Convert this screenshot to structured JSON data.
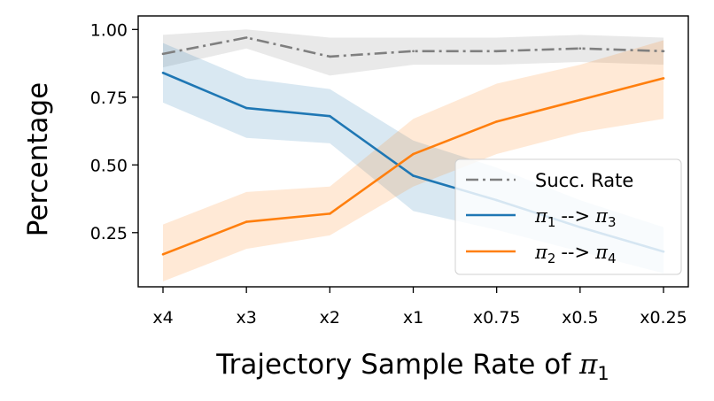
{
  "chart_data": {
    "type": "line",
    "categories": [
      "x4",
      "x3",
      "x2",
      "x1",
      "x0.75",
      "x0.5",
      "x0.25"
    ],
    "xlabel": {
      "text": "Trajectory Sample Rate of ",
      "sym": "π",
      "sub": "1"
    },
    "ylabel": "Percentage",
    "ylim": [
      0.05,
      1.05
    ],
    "yticks": [
      0.25,
      0.5,
      0.75,
      1.0
    ],
    "ytick_labels": [
      "0.25",
      "0.50",
      "0.75",
      "1.00"
    ],
    "grid": false,
    "legend_position": "lower-right",
    "series": [
      {
        "name": "Succ. Rate",
        "color": "#7f7f7f",
        "style": "dashdot",
        "values": [
          0.91,
          0.97,
          0.9,
          0.92,
          0.92,
          0.93,
          0.92
        ],
        "lower": [
          0.86,
          0.93,
          0.83,
          0.87,
          0.87,
          0.88,
          0.87
        ],
        "upper": [
          0.98,
          1.0,
          0.97,
          0.97,
          0.97,
          0.98,
          0.97
        ]
      },
      {
        "name": "-->",
        "sym_a": "π",
        "sub_a": "1",
        "sym_b": "π",
        "sub_b": "3",
        "color": "#1f77b4",
        "style": "solid",
        "values": [
          0.84,
          0.71,
          0.68,
          0.46,
          0.37,
          0.27,
          0.18
        ],
        "lower": [
          0.73,
          0.6,
          0.58,
          0.33,
          0.26,
          0.18,
          0.1
        ],
        "upper": [
          0.95,
          0.82,
          0.78,
          0.59,
          0.49,
          0.37,
          0.27
        ]
      },
      {
        "name": "-->",
        "sym_a": "π",
        "sub_a": "2",
        "sym_b": "π",
        "sub_b": "4",
        "color": "#ff7f0e",
        "style": "solid",
        "values": [
          0.17,
          0.29,
          0.32,
          0.54,
          0.66,
          0.74,
          0.82
        ],
        "lower": [
          0.07,
          0.19,
          0.24,
          0.42,
          0.54,
          0.62,
          0.67
        ],
        "upper": [
          0.28,
          0.4,
          0.42,
          0.67,
          0.8,
          0.87,
          0.96
        ]
      }
    ]
  }
}
